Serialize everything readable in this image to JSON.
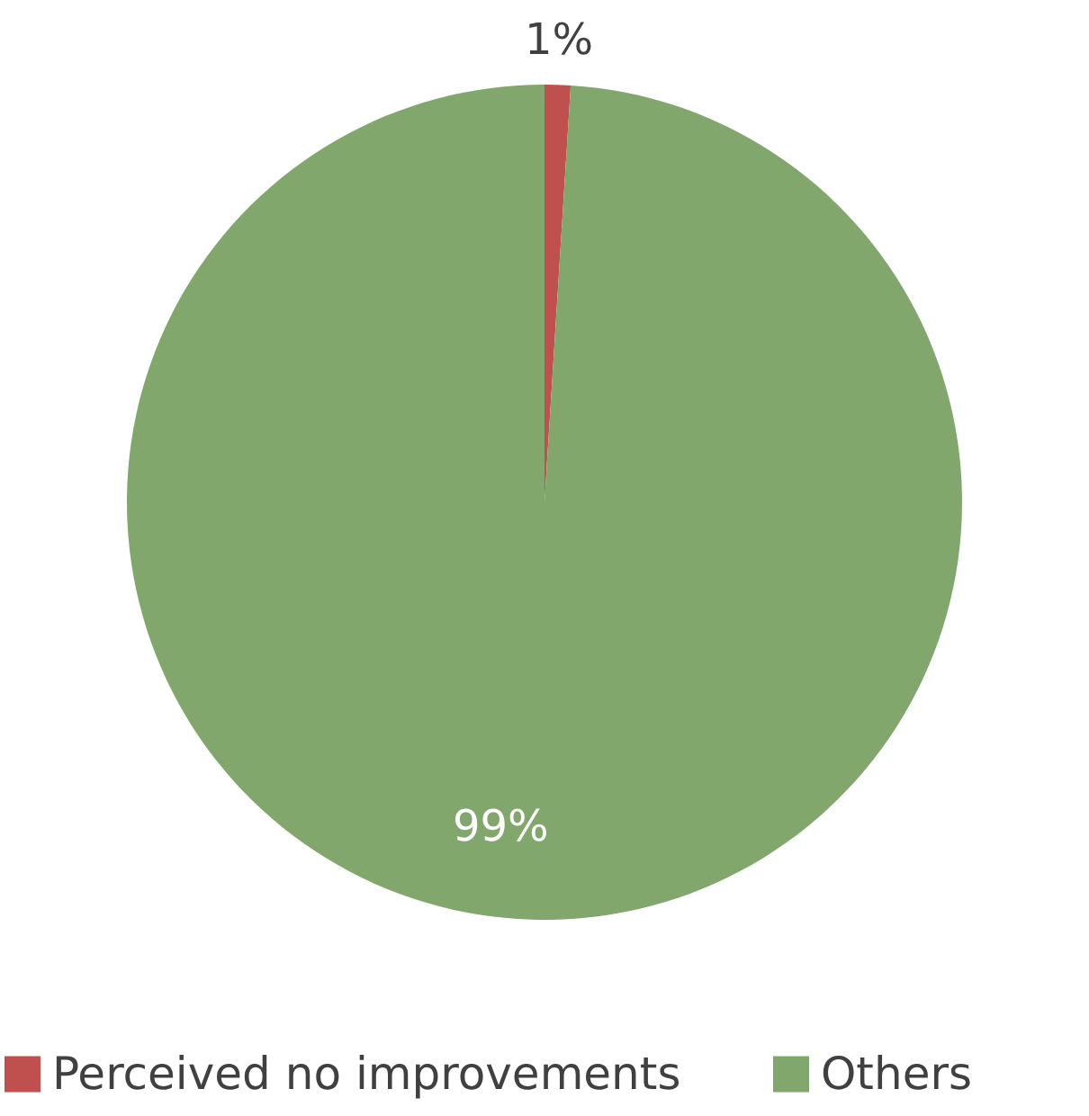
{
  "chart_data": {
    "type": "pie",
    "categories": [
      "Perceived no improvements",
      "Others"
    ],
    "values": [
      1,
      99
    ],
    "colors": [
      "#c0504d",
      "#82a76c"
    ],
    "value_labels": [
      "1%",
      "99%"
    ],
    "legend": "bottom"
  }
}
